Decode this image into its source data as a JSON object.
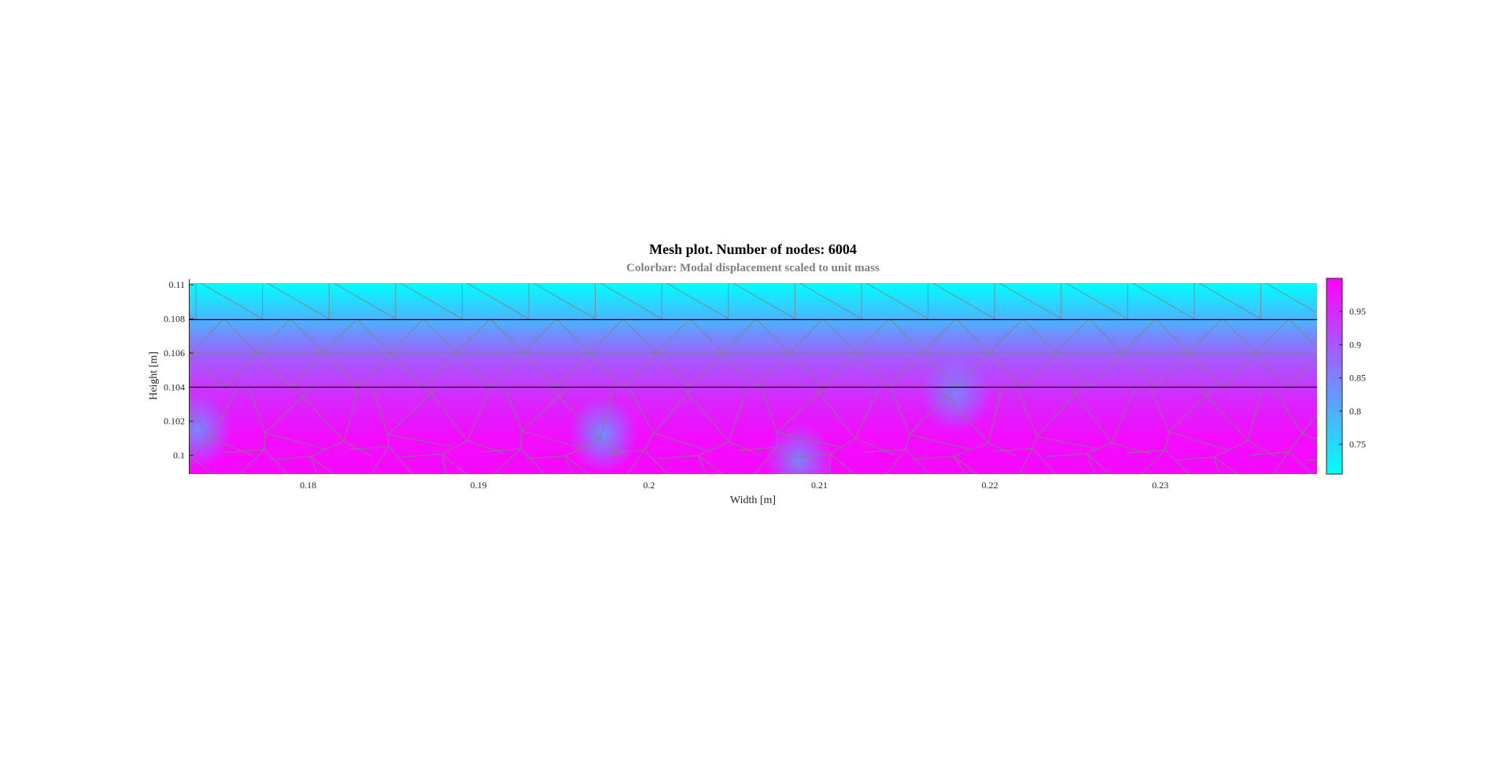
{
  "chart_data": {
    "type": "heatmap",
    "title": "Mesh plot. Number of nodes: 6004",
    "subtitle": "Colorbar: Modal displacement scaled to unit mass",
    "xlabel": "Width [m]",
    "ylabel": "Height [m]",
    "xlim": [
      0.173,
      0.2392
    ],
    "ylim": [
      0.0989,
      0.1101
    ],
    "xticks": [
      0.18,
      0.19,
      0.2,
      0.21,
      0.22,
      0.23
    ],
    "xtick_labels": [
      "0.18",
      "0.19",
      "0.2",
      "0.21",
      "0.22",
      "0.23"
    ],
    "yticks": [
      0.1,
      0.102,
      0.104,
      0.106,
      0.108,
      0.11
    ],
    "ytick_labels": [
      "0.1",
      "0.102",
      "0.104",
      "0.106",
      "0.108",
      "0.11"
    ],
    "layer_boundaries_y": [
      0.104,
      0.108
    ],
    "mesh_rows_y": [
      0.0989,
      0.1002,
      0.1011,
      0.1022,
      0.104,
      0.106,
      0.108,
      0.1101
    ],
    "color_profile": {
      "y": [
        0.0989,
        0.1011,
        0.103,
        0.1055,
        0.107,
        0.108,
        0.1101
      ],
      "value": [
        0.99,
        0.985,
        0.96,
        0.9,
        0.84,
        0.79,
        0.705
      ]
    },
    "local_low_spots": [
      {
        "x": 0.1735,
        "y": 0.1015,
        "value": 0.82
      },
      {
        "x": 0.1973,
        "y": 0.1012,
        "value": 0.81
      },
      {
        "x": 0.2088,
        "y": 0.0997,
        "value": 0.83
      },
      {
        "x": 0.218,
        "y": 0.1036,
        "value": 0.84
      }
    ],
    "colorbar": {
      "range": [
        0.705,
        1.0
      ],
      "ticks": [
        0.75,
        0.8,
        0.85,
        0.9,
        0.95
      ],
      "tick_labels": [
        "0.75",
        "0.8",
        "0.85",
        "0.9",
        "0.95"
      ],
      "colormap": "cool",
      "colors": [
        "#00ffff",
        "#ff00ff"
      ]
    },
    "grid": false,
    "colorbar_location": "right",
    "mesh_color": "#808080",
    "boundary_color": "#000000"
  }
}
